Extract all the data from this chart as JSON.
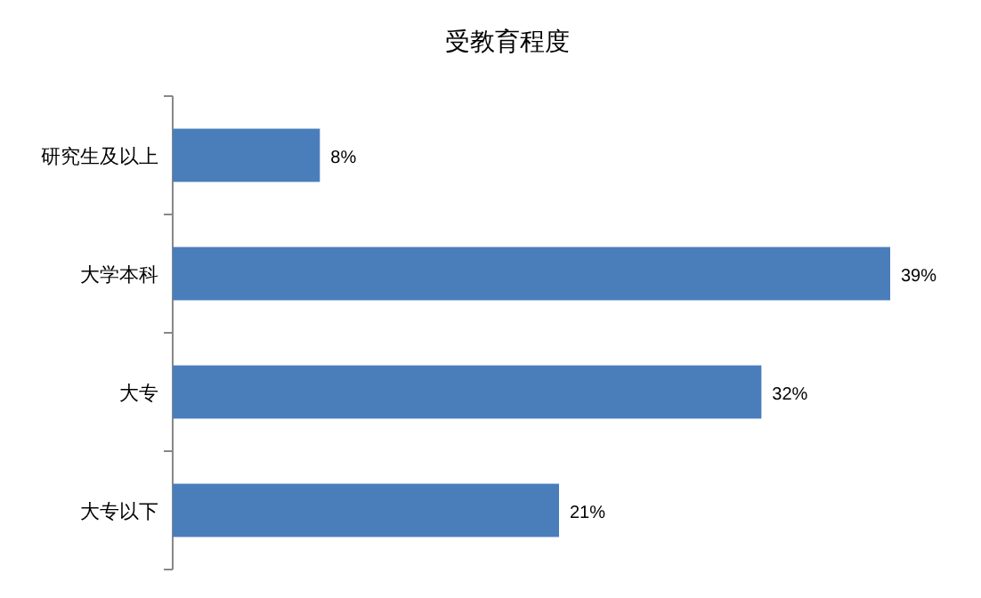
{
  "chart_data": {
    "type": "bar",
    "title": "受教育程度",
    "orientation": "horizontal",
    "categories": [
      "研究生及以上",
      "大学本科",
      "大专",
      "大专以下"
    ],
    "values": [
      8,
      39,
      32,
      21
    ],
    "value_labels": [
      "8%",
      "39%",
      "32%",
      "21%"
    ],
    "color": "#4a7ebb"
  }
}
